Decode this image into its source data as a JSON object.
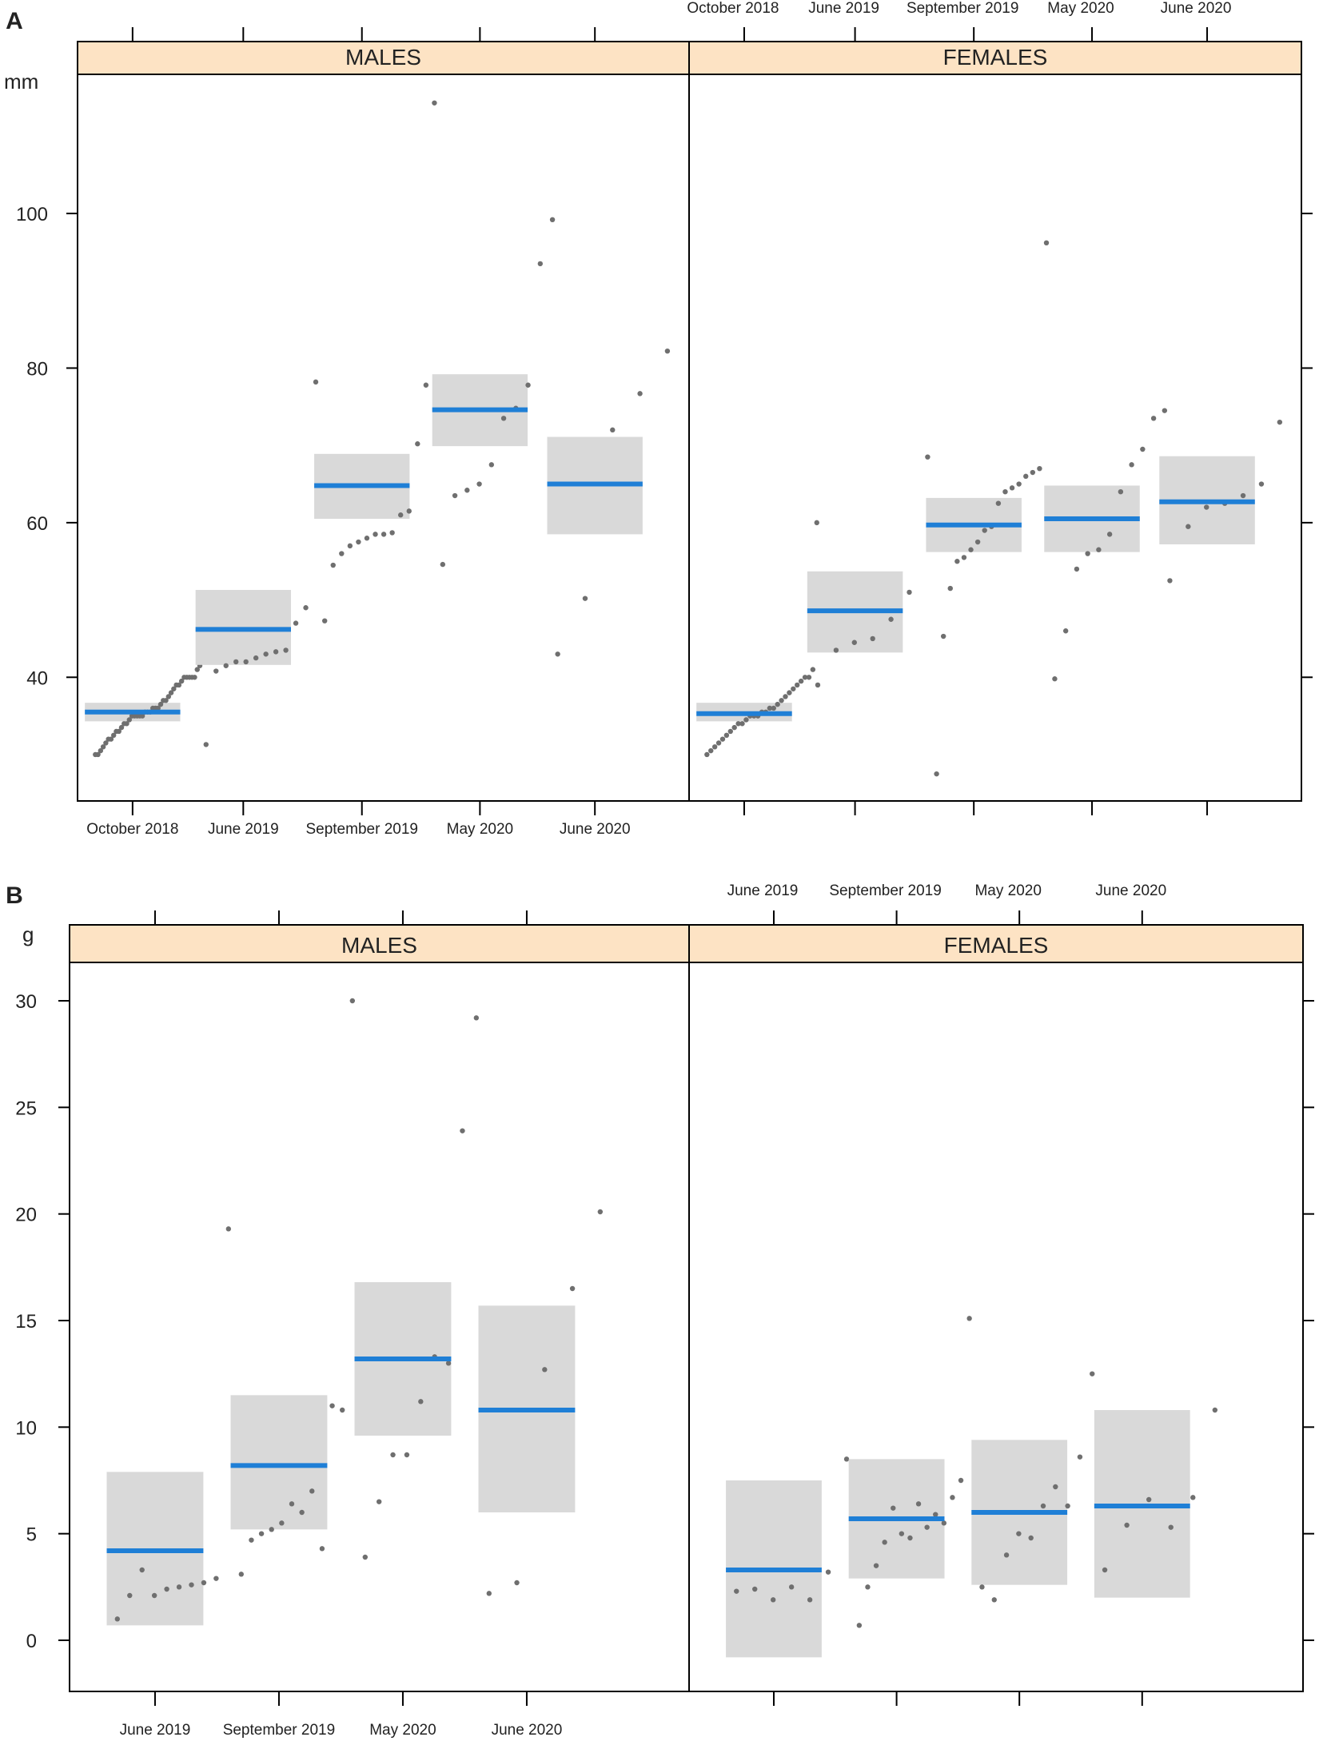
{
  "panel_labels": [
    "A",
    "B"
  ],
  "chart_data": [
    {
      "type": "scatter",
      "title": "A",
      "ylabel": "mm",
      "ylim": [
        24,
        118
      ],
      "yticks": [
        40,
        60,
        80,
        100
      ],
      "panels": [
        {
          "name": "MALES",
          "categories": [
            "October 2018",
            "June 2019",
            "September 2019",
            "May 2020",
            "June 2020"
          ],
          "groups": [
            {
              "mean": 35.5,
              "lower": 34.3,
              "upper": 36.7,
              "points": [
                30,
                30,
                30.5,
                31,
                31.5,
                32,
                32,
                32.5,
                33,
                33,
                33.5,
                34,
                34,
                34.5,
                35,
                35,
                35,
                35,
                35,
                35.5,
                35.5,
                35.5,
                36,
                36,
                36,
                36.5,
                37,
                37,
                37.5,
                38,
                38.5,
                39,
                39,
                39.5,
                40,
                40,
                40,
                40,
                40,
                41,
                41.5,
                42,
                45
              ]
            },
            {
              "mean": 46.2,
              "lower": 41.6,
              "upper": 51.3,
              "points": [
                31.3,
                40.8,
                41.5,
                42,
                42,
                42.5,
                43,
                43.3,
                43.5,
                47,
                49,
                78.2
              ]
            },
            {
              "mean": 64.8,
              "lower": 60.5,
              "upper": 68.9,
              "points": [
                47.3,
                54.5,
                56,
                57,
                57.5,
                58,
                58.5,
                58.5,
                58.7,
                61,
                61.5,
                70.2,
                77.8,
                114.3
              ]
            },
            {
              "mean": 74.6,
              "lower": 69.9,
              "upper": 79.2,
              "points": [
                54.6,
                63.5,
                64.2,
                65,
                67.5,
                73.5,
                74.8,
                77.8,
                93.5,
                99.2
              ]
            },
            {
              "mean": 65.0,
              "lower": 58.5,
              "upper": 71.1,
              "points": [
                43,
                50.2,
                72,
                76.7,
                82.2
              ]
            }
          ]
        },
        {
          "name": "FEMALES",
          "categories": [
            "October 2018",
            "June 2019",
            "September 2019",
            "May 2020",
            "June 2020"
          ],
          "groups": [
            {
              "mean": 35.3,
              "lower": 34.3,
              "upper": 36.7,
              "points": [
                30,
                30.5,
                31,
                31.5,
                32,
                32.5,
                33,
                33.5,
                34,
                34,
                34.5,
                35,
                35,
                35,
                35.5,
                35.5,
                36,
                36,
                36.5,
                37,
                37.5,
                38,
                38.5,
                39,
                39.5,
                40,
                40,
                41,
                60
              ]
            },
            {
              "mean": 48.6,
              "lower": 43.2,
              "upper": 53.7,
              "points": [
                39,
                43.5,
                44.5,
                45,
                47.5,
                51,
                68.5
              ]
            },
            {
              "mean": 59.7,
              "lower": 56.2,
              "upper": 63.2,
              "points": [
                27.5,
                45.3,
                51.5,
                55,
                55.5,
                56.5,
                57.5,
                59,
                59.5,
                62.5,
                64,
                64.5,
                65,
                66,
                66.5,
                67,
                96.2
              ]
            },
            {
              "mean": 60.5,
              "lower": 56.2,
              "upper": 64.8,
              "points": [
                39.8,
                46,
                54,
                56,
                56.5,
                58.5,
                64,
                67.5,
                69.5,
                73.5,
                74.5
              ]
            },
            {
              "mean": 62.7,
              "lower": 57.2,
              "upper": 68.6,
              "points": [
                52.5,
                59.5,
                62,
                62.5,
                63.5,
                65,
                73
              ]
            }
          ]
        }
      ]
    },
    {
      "type": "scatter",
      "title": "B",
      "ylabel": "g",
      "ylim": [
        -2.4,
        31.8
      ],
      "yticks": [
        0,
        5,
        10,
        15,
        20,
        25,
        30
      ],
      "panels": [
        {
          "name": "MALES",
          "categories": [
            "June 2019",
            "September 2019",
            "May 2020",
            "June 2020"
          ],
          "groups": [
            {
              "mean": 4.2,
              "lower": 0.7,
              "upper": 7.9,
              "points": [
                1,
                2.1,
                3.3,
                2.1,
                2.4,
                2.5,
                2.6,
                2.7,
                2.9,
                19.3
              ]
            },
            {
              "mean": 8.2,
              "lower": 5.2,
              "upper": 11.5,
              "points": [
                3.1,
                4.7,
                5,
                5.2,
                5.5,
                6.4,
                6,
                7,
                4.3,
                11,
                10.8,
                30
              ]
            },
            {
              "mean": 13.2,
              "lower": 9.6,
              "upper": 16.8,
              "points": [
                3.9,
                6.5,
                8.7,
                8.7,
                11.2,
                13.3,
                13,
                23.9,
                29.2
              ]
            },
            {
              "mean": 10.8,
              "lower": 6.0,
              "upper": 15.7,
              "points": [
                2.2,
                2.7,
                12.7,
                16.5,
                20.1
              ]
            }
          ]
        },
        {
          "name": "FEMALES",
          "categories": [
            "June 2019",
            "September 2019",
            "May 2020",
            "June 2020"
          ],
          "groups": [
            {
              "mean": 3.3,
              "lower": -0.8,
              "upper": 7.5,
              "points": [
                2.3,
                2.4,
                1.9,
                2.5,
                1.9,
                3.2,
                8.5
              ]
            },
            {
              "mean": 5.7,
              "lower": 2.9,
              "upper": 8.5,
              "points": [
                0.7,
                2.5,
                3.5,
                4.6,
                6.2,
                5,
                4.8,
                6.4,
                5.3,
                5.9,
                5.5,
                6.7,
                7.5,
                15.1
              ]
            },
            {
              "mean": 6.0,
              "lower": 2.6,
              "upper": 9.4,
              "points": [
                2.5,
                1.9,
                4,
                5,
                4.8,
                6.3,
                7.2,
                6.3,
                8.6,
                12.5
              ]
            },
            {
              "mean": 6.3,
              "lower": 2.0,
              "upper": 10.8,
              "points": [
                3.3,
                5.4,
                6.6,
                5.3,
                6.7,
                10.8
              ]
            }
          ]
        }
      ]
    }
  ]
}
